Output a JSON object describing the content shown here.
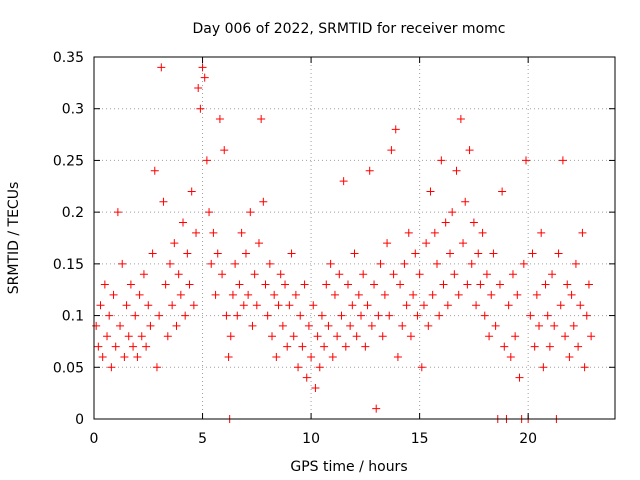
{
  "chart_data": {
    "type": "scatter",
    "title": "Day 006 of 2022, SRMTID for receiver momc",
    "xlabel": "GPS time / hours",
    "ylabel": "SRMTID / TECUs",
    "xlim": [
      0,
      24
    ],
    "ylim": [
      0,
      0.35
    ],
    "x_ticks": [
      0,
      5,
      10,
      15,
      20
    ],
    "x_tick_labels": [
      "0",
      "5",
      "10",
      "15",
      "20"
    ],
    "y_ticks": [
      0,
      0.05,
      0.1,
      0.15,
      0.2,
      0.25,
      0.3,
      0.35
    ],
    "y_tick_labels": [
      "0",
      "0.05",
      "0.1",
      "0.15",
      "0.2",
      "0.25",
      "0.3",
      "0.35"
    ],
    "grid": true,
    "legend": "none",
    "marker": "plus",
    "color": "#ff0000",
    "series": [
      {
        "points": [
          [
            0.1,
            0.09
          ],
          [
            0.2,
            0.07
          ],
          [
            0.3,
            0.11
          ],
          [
            0.4,
            0.06
          ],
          [
            0.5,
            0.13
          ],
          [
            0.6,
            0.08
          ],
          [
            0.7,
            0.1
          ],
          [
            0.8,
            0.05
          ],
          [
            0.9,
            0.12
          ],
          [
            1.0,
            0.07
          ],
          [
            1.1,
            0.2
          ],
          [
            1.2,
            0.09
          ],
          [
            1.3,
            0.15
          ],
          [
            1.4,
            0.06
          ],
          [
            1.5,
            0.11
          ],
          [
            1.6,
            0.08
          ],
          [
            1.7,
            0.13
          ],
          [
            1.8,
            0.07
          ],
          [
            1.9,
            0.1
          ],
          [
            2.0,
            0.06
          ],
          [
            2.1,
            0.12
          ],
          [
            2.2,
            0.08
          ],
          [
            2.3,
            0.14
          ],
          [
            2.4,
            0.07
          ],
          [
            2.5,
            0.11
          ],
          [
            2.6,
            0.09
          ],
          [
            2.7,
            0.16
          ],
          [
            2.8,
            0.24
          ],
          [
            2.9,
            0.05
          ],
          [
            3.0,
            0.1
          ],
          [
            3.1,
            0.34
          ],
          [
            3.2,
            0.21
          ],
          [
            3.3,
            0.13
          ],
          [
            3.4,
            0.08
          ],
          [
            3.5,
            0.15
          ],
          [
            3.6,
            0.11
          ],
          [
            3.7,
            0.17
          ],
          [
            3.8,
            0.09
          ],
          [
            3.9,
            0.14
          ],
          [
            4.0,
            0.12
          ],
          [
            4.1,
            0.19
          ],
          [
            4.2,
            0.1
          ],
          [
            4.3,
            0.16
          ],
          [
            4.4,
            0.13
          ],
          [
            4.5,
            0.22
          ],
          [
            4.6,
            0.11
          ],
          [
            4.7,
            0.18
          ],
          [
            4.8,
            0.32
          ],
          [
            4.9,
            0.3
          ],
          [
            5.0,
            0.34
          ],
          [
            5.1,
            0.33
          ],
          [
            5.2,
            0.25
          ],
          [
            5.3,
            0.2
          ],
          [
            5.4,
            0.15
          ],
          [
            5.5,
            0.18
          ],
          [
            5.6,
            0.12
          ],
          [
            5.7,
            0.16
          ],
          [
            5.8,
            0.29
          ],
          [
            5.9,
            0.14
          ],
          [
            6.0,
            0.26
          ],
          [
            6.1,
            0.1
          ],
          [
            6.2,
            0.06
          ],
          [
            6.25,
            0.0
          ],
          [
            6.3,
            0.08
          ],
          [
            6.4,
            0.12
          ],
          [
            6.5,
            0.15
          ],
          [
            6.6,
            0.1
          ],
          [
            6.7,
            0.13
          ],
          [
            6.8,
            0.18
          ],
          [
            6.9,
            0.11
          ],
          [
            7.0,
            0.16
          ],
          [
            7.1,
            0.12
          ],
          [
            7.2,
            0.2
          ],
          [
            7.3,
            0.09
          ],
          [
            7.4,
            0.14
          ],
          [
            7.5,
            0.11
          ],
          [
            7.6,
            0.17
          ],
          [
            7.7,
            0.29
          ],
          [
            7.8,
            0.21
          ],
          [
            7.9,
            0.13
          ],
          [
            8.0,
            0.1
          ],
          [
            8.1,
            0.15
          ],
          [
            8.2,
            0.08
          ],
          [
            8.3,
            0.12
          ],
          [
            8.4,
            0.06
          ],
          [
            8.5,
            0.11
          ],
          [
            8.6,
            0.14
          ],
          [
            8.7,
            0.09
          ],
          [
            8.8,
            0.13
          ],
          [
            8.9,
            0.07
          ],
          [
            9.0,
            0.11
          ],
          [
            9.1,
            0.16
          ],
          [
            9.2,
            0.08
          ],
          [
            9.3,
            0.12
          ],
          [
            9.4,
            0.05
          ],
          [
            9.5,
            0.1
          ],
          [
            9.6,
            0.07
          ],
          [
            9.7,
            0.13
          ],
          [
            9.8,
            0.04
          ],
          [
            9.9,
            0.09
          ],
          [
            10.0,
            0.06
          ],
          [
            10.1,
            0.11
          ],
          [
            10.2,
            0.03
          ],
          [
            10.3,
            0.08
          ],
          [
            10.4,
            0.05
          ],
          [
            10.5,
            0.1
          ],
          [
            10.6,
            0.07
          ],
          [
            10.7,
            0.13
          ],
          [
            10.8,
            0.09
          ],
          [
            10.9,
            0.15
          ],
          [
            11.0,
            0.06
          ],
          [
            11.1,
            0.12
          ],
          [
            11.2,
            0.08
          ],
          [
            11.3,
            0.14
          ],
          [
            11.4,
            0.1
          ],
          [
            11.5,
            0.23
          ],
          [
            11.6,
            0.07
          ],
          [
            11.7,
            0.13
          ],
          [
            11.8,
            0.09
          ],
          [
            11.9,
            0.11
          ],
          [
            12.0,
            0.16
          ],
          [
            12.1,
            0.08
          ],
          [
            12.2,
            0.12
          ],
          [
            12.3,
            0.1
          ],
          [
            12.4,
            0.14
          ],
          [
            12.5,
            0.07
          ],
          [
            12.6,
            0.11
          ],
          [
            12.7,
            0.24
          ],
          [
            12.8,
            0.09
          ],
          [
            12.9,
            0.13
          ],
          [
            13.0,
            0.01
          ],
          [
            13.1,
            0.1
          ],
          [
            13.2,
            0.15
          ],
          [
            13.3,
            0.08
          ],
          [
            13.4,
            0.12
          ],
          [
            13.5,
            0.17
          ],
          [
            13.6,
            0.1
          ],
          [
            13.7,
            0.26
          ],
          [
            13.8,
            0.14
          ],
          [
            13.9,
            0.28
          ],
          [
            14.0,
            0.06
          ],
          [
            14.1,
            0.13
          ],
          [
            14.2,
            0.09
          ],
          [
            14.3,
            0.15
          ],
          [
            14.4,
            0.11
          ],
          [
            14.5,
            0.18
          ],
          [
            14.6,
            0.08
          ],
          [
            14.7,
            0.12
          ],
          [
            14.8,
            0.16
          ],
          [
            14.9,
            0.1
          ],
          [
            15.0,
            0.14
          ],
          [
            15.1,
            0.05
          ],
          [
            15.2,
            0.11
          ],
          [
            15.3,
            0.17
          ],
          [
            15.4,
            0.09
          ],
          [
            15.5,
            0.22
          ],
          [
            15.6,
            0.12
          ],
          [
            15.7,
            0.18
          ],
          [
            15.8,
            0.15
          ],
          [
            15.9,
            0.1
          ],
          [
            16.0,
            0.25
          ],
          [
            16.1,
            0.13
          ],
          [
            16.2,
            0.19
          ],
          [
            16.3,
            0.11
          ],
          [
            16.4,
            0.16
          ],
          [
            16.5,
            0.2
          ],
          [
            16.6,
            0.14
          ],
          [
            16.7,
            0.24
          ],
          [
            16.8,
            0.12
          ],
          [
            16.9,
            0.29
          ],
          [
            17.0,
            0.17
          ],
          [
            17.1,
            0.21
          ],
          [
            17.2,
            0.13
          ],
          [
            17.3,
            0.26
          ],
          [
            17.4,
            0.15
          ],
          [
            17.5,
            0.19
          ],
          [
            17.6,
            0.11
          ],
          [
            17.7,
            0.16
          ],
          [
            17.8,
            0.13
          ],
          [
            17.9,
            0.18
          ],
          [
            18.0,
            0.1
          ],
          [
            18.1,
            0.14
          ],
          [
            18.2,
            0.08
          ],
          [
            18.3,
            0.12
          ],
          [
            18.4,
            0.16
          ],
          [
            18.5,
            0.09
          ],
          [
            18.6,
            0.0
          ],
          [
            18.7,
            0.13
          ],
          [
            18.8,
            0.22
          ],
          [
            18.9,
            0.07
          ],
          [
            19.0,
            0.0
          ],
          [
            19.1,
            0.11
          ],
          [
            19.2,
            0.06
          ],
          [
            19.3,
            0.14
          ],
          [
            19.4,
            0.08
          ],
          [
            19.5,
            0.12
          ],
          [
            19.6,
            0.04
          ],
          [
            19.7,
            0.0
          ],
          [
            19.8,
            0.15
          ],
          [
            19.9,
            0.25
          ],
          [
            20.0,
            0.0
          ],
          [
            20.1,
            0.1
          ],
          [
            20.2,
            0.16
          ],
          [
            20.3,
            0.07
          ],
          [
            20.4,
            0.12
          ],
          [
            20.5,
            0.09
          ],
          [
            20.6,
            0.18
          ],
          [
            20.7,
            0.05
          ],
          [
            20.8,
            0.13
          ],
          [
            20.9,
            0.1
          ],
          [
            21.0,
            0.07
          ],
          [
            21.1,
            0.14
          ],
          [
            21.2,
            0.09
          ],
          [
            21.3,
            0.0
          ],
          [
            21.4,
            0.16
          ],
          [
            21.5,
            0.11
          ],
          [
            21.6,
            0.25
          ],
          [
            21.7,
            0.08
          ],
          [
            21.8,
            0.13
          ],
          [
            21.9,
            0.06
          ],
          [
            22.0,
            0.12
          ],
          [
            22.1,
            0.09
          ],
          [
            22.2,
            0.15
          ],
          [
            22.3,
            0.07
          ],
          [
            22.4,
            0.11
          ],
          [
            22.5,
            0.18
          ],
          [
            22.6,
            0.05
          ],
          [
            22.7,
            0.1
          ],
          [
            22.8,
            0.13
          ],
          [
            22.9,
            0.08
          ]
        ]
      }
    ]
  }
}
